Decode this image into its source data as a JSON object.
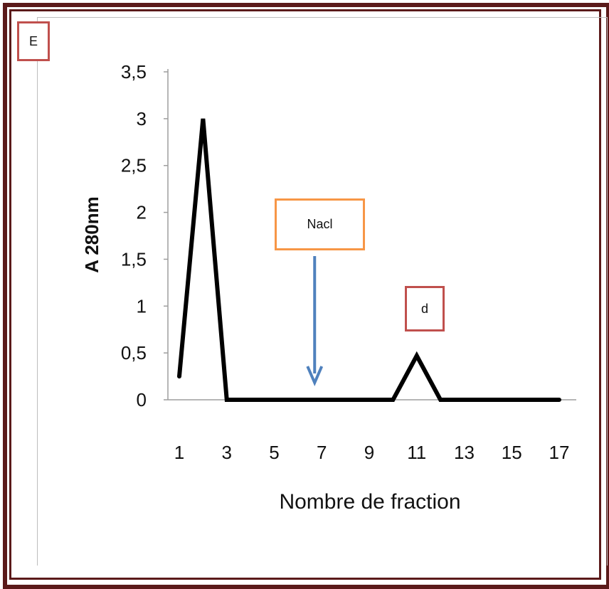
{
  "panel_label": "E",
  "annotations": {
    "nacl_label": "Nacl",
    "peak_label": "d",
    "arrow_color": "#4f81bd",
    "nacl_box_color": "#f79646",
    "peak_box_color": "#c0504d"
  },
  "frame_color": "#5b1a1a",
  "chart_data": {
    "type": "line",
    "title": "",
    "xlabel": "Nombre de fraction",
    "ylabel": "A 280nm",
    "x": [
      1,
      2,
      3,
      4,
      5,
      6,
      7,
      8,
      9,
      10,
      11,
      12,
      13,
      14,
      15,
      16,
      17
    ],
    "x_tick_labels": [
      "1",
      "3",
      "5",
      "7",
      "9",
      "11",
      "13",
      "15",
      "17"
    ],
    "x_tick_values": [
      1,
      3,
      5,
      7,
      9,
      11,
      13,
      15,
      17
    ],
    "y_tick_labels": [
      "0",
      "0,5",
      "1",
      "1,5",
      "2",
      "2,5",
      "3",
      "3,5"
    ],
    "y_tick_values": [
      0,
      0.5,
      1,
      1.5,
      2,
      2.5,
      3,
      3.5
    ],
    "ylim": [
      0,
      3.5
    ],
    "xlim": [
      1,
      17
    ],
    "series": [
      {
        "values": [
          0.25,
          3.0,
          0,
          0,
          0,
          0,
          0,
          0,
          0,
          0,
          0.47,
          0,
          0,
          0,
          0,
          0,
          0
        ],
        "color": "#000000"
      }
    ],
    "arrow_at_x": 7,
    "grid": false,
    "legend": "none"
  }
}
